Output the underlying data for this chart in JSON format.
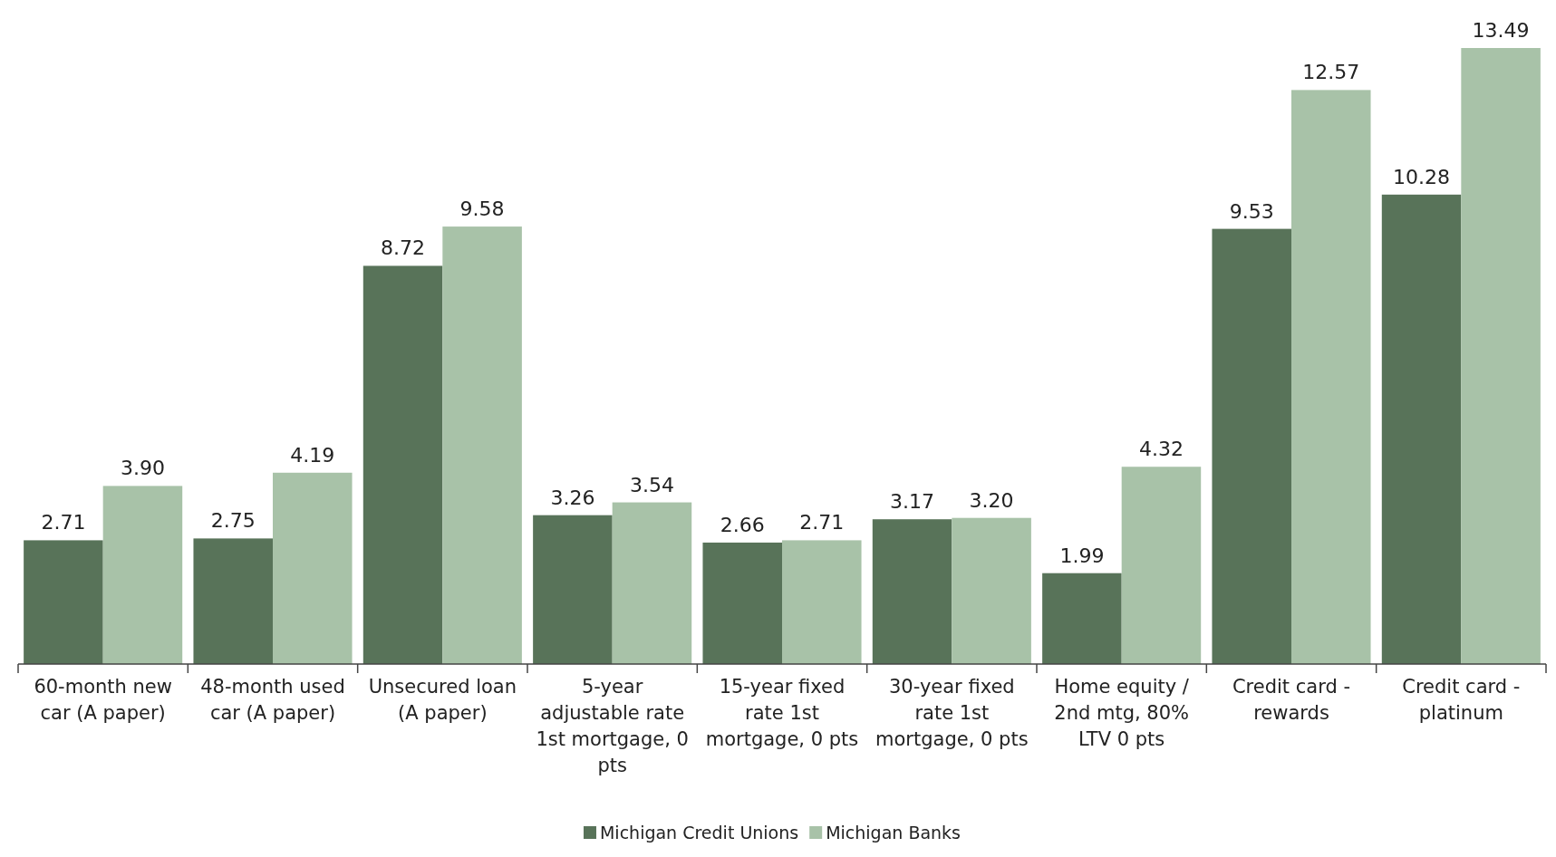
{
  "chart_data": {
    "type": "bar",
    "categories": [
      "60-month new car (A paper)",
      "48-month used car (A paper)",
      "Unsecured loan (A paper)",
      "5-year adjustable rate 1st mortgage, 0 pts",
      "15-year fixed rate 1st mortgage, 0 pts",
      "30-year fixed rate 1st mortgage, 0 pts",
      "Home equity / 2nd mtg, 80% LTV 0 pts",
      "Credit card - rewards",
      "Credit card - platinum"
    ],
    "series": [
      {
        "name": "Michigan Credit Unions",
        "color": "#587359",
        "values": [
          2.71,
          2.75,
          8.72,
          3.26,
          2.66,
          3.17,
          1.99,
          9.53,
          10.28
        ],
        "value_labels": [
          "2.71",
          "2.75",
          "8.72",
          "3.26",
          "2.66",
          "3.17",
          "1.99",
          "9.53",
          "10.28"
        ]
      },
      {
        "name": "Michigan Banks",
        "color": "#a8c2a8",
        "values": [
          3.9,
          4.19,
          9.58,
          3.54,
          2.71,
          3.2,
          4.32,
          12.57,
          13.49
        ],
        "value_labels": [
          "3.90",
          "4.19",
          "9.58",
          "3.54",
          "2.71",
          "3.20",
          "4.32",
          "12.57",
          "13.49"
        ]
      }
    ],
    "legend": "bottom"
  }
}
